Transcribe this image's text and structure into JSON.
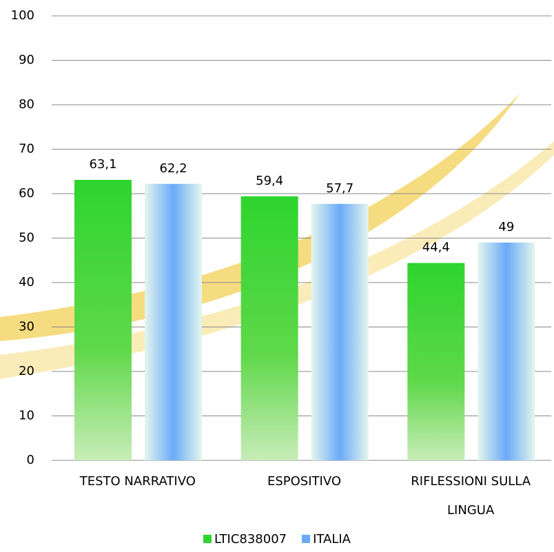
{
  "chart_data": {
    "type": "bar",
    "categories": [
      "TESTO NARRATIVO",
      "ESPOSITIVO",
      "RIFLESSIONI SULLA LINGUA"
    ],
    "series": [
      {
        "name": "LTIC838007",
        "color": "#2ed52e",
        "values": [
          63.1,
          59.4,
          44.4
        ],
        "value_labels": [
          "63,1",
          "59,4",
          "44,4"
        ]
      },
      {
        "name": "ITALIA",
        "color": "#6aaaf8",
        "values": [
          62.2,
          57.7,
          49
        ],
        "value_labels": [
          "62,2",
          "57,7",
          "49"
        ]
      }
    ],
    "ylim": [
      0,
      100
    ],
    "yticks": [
      0,
      10,
      20,
      30,
      40,
      50,
      60,
      70,
      80,
      90,
      100
    ],
    "grid": true,
    "legend": "bottom"
  }
}
